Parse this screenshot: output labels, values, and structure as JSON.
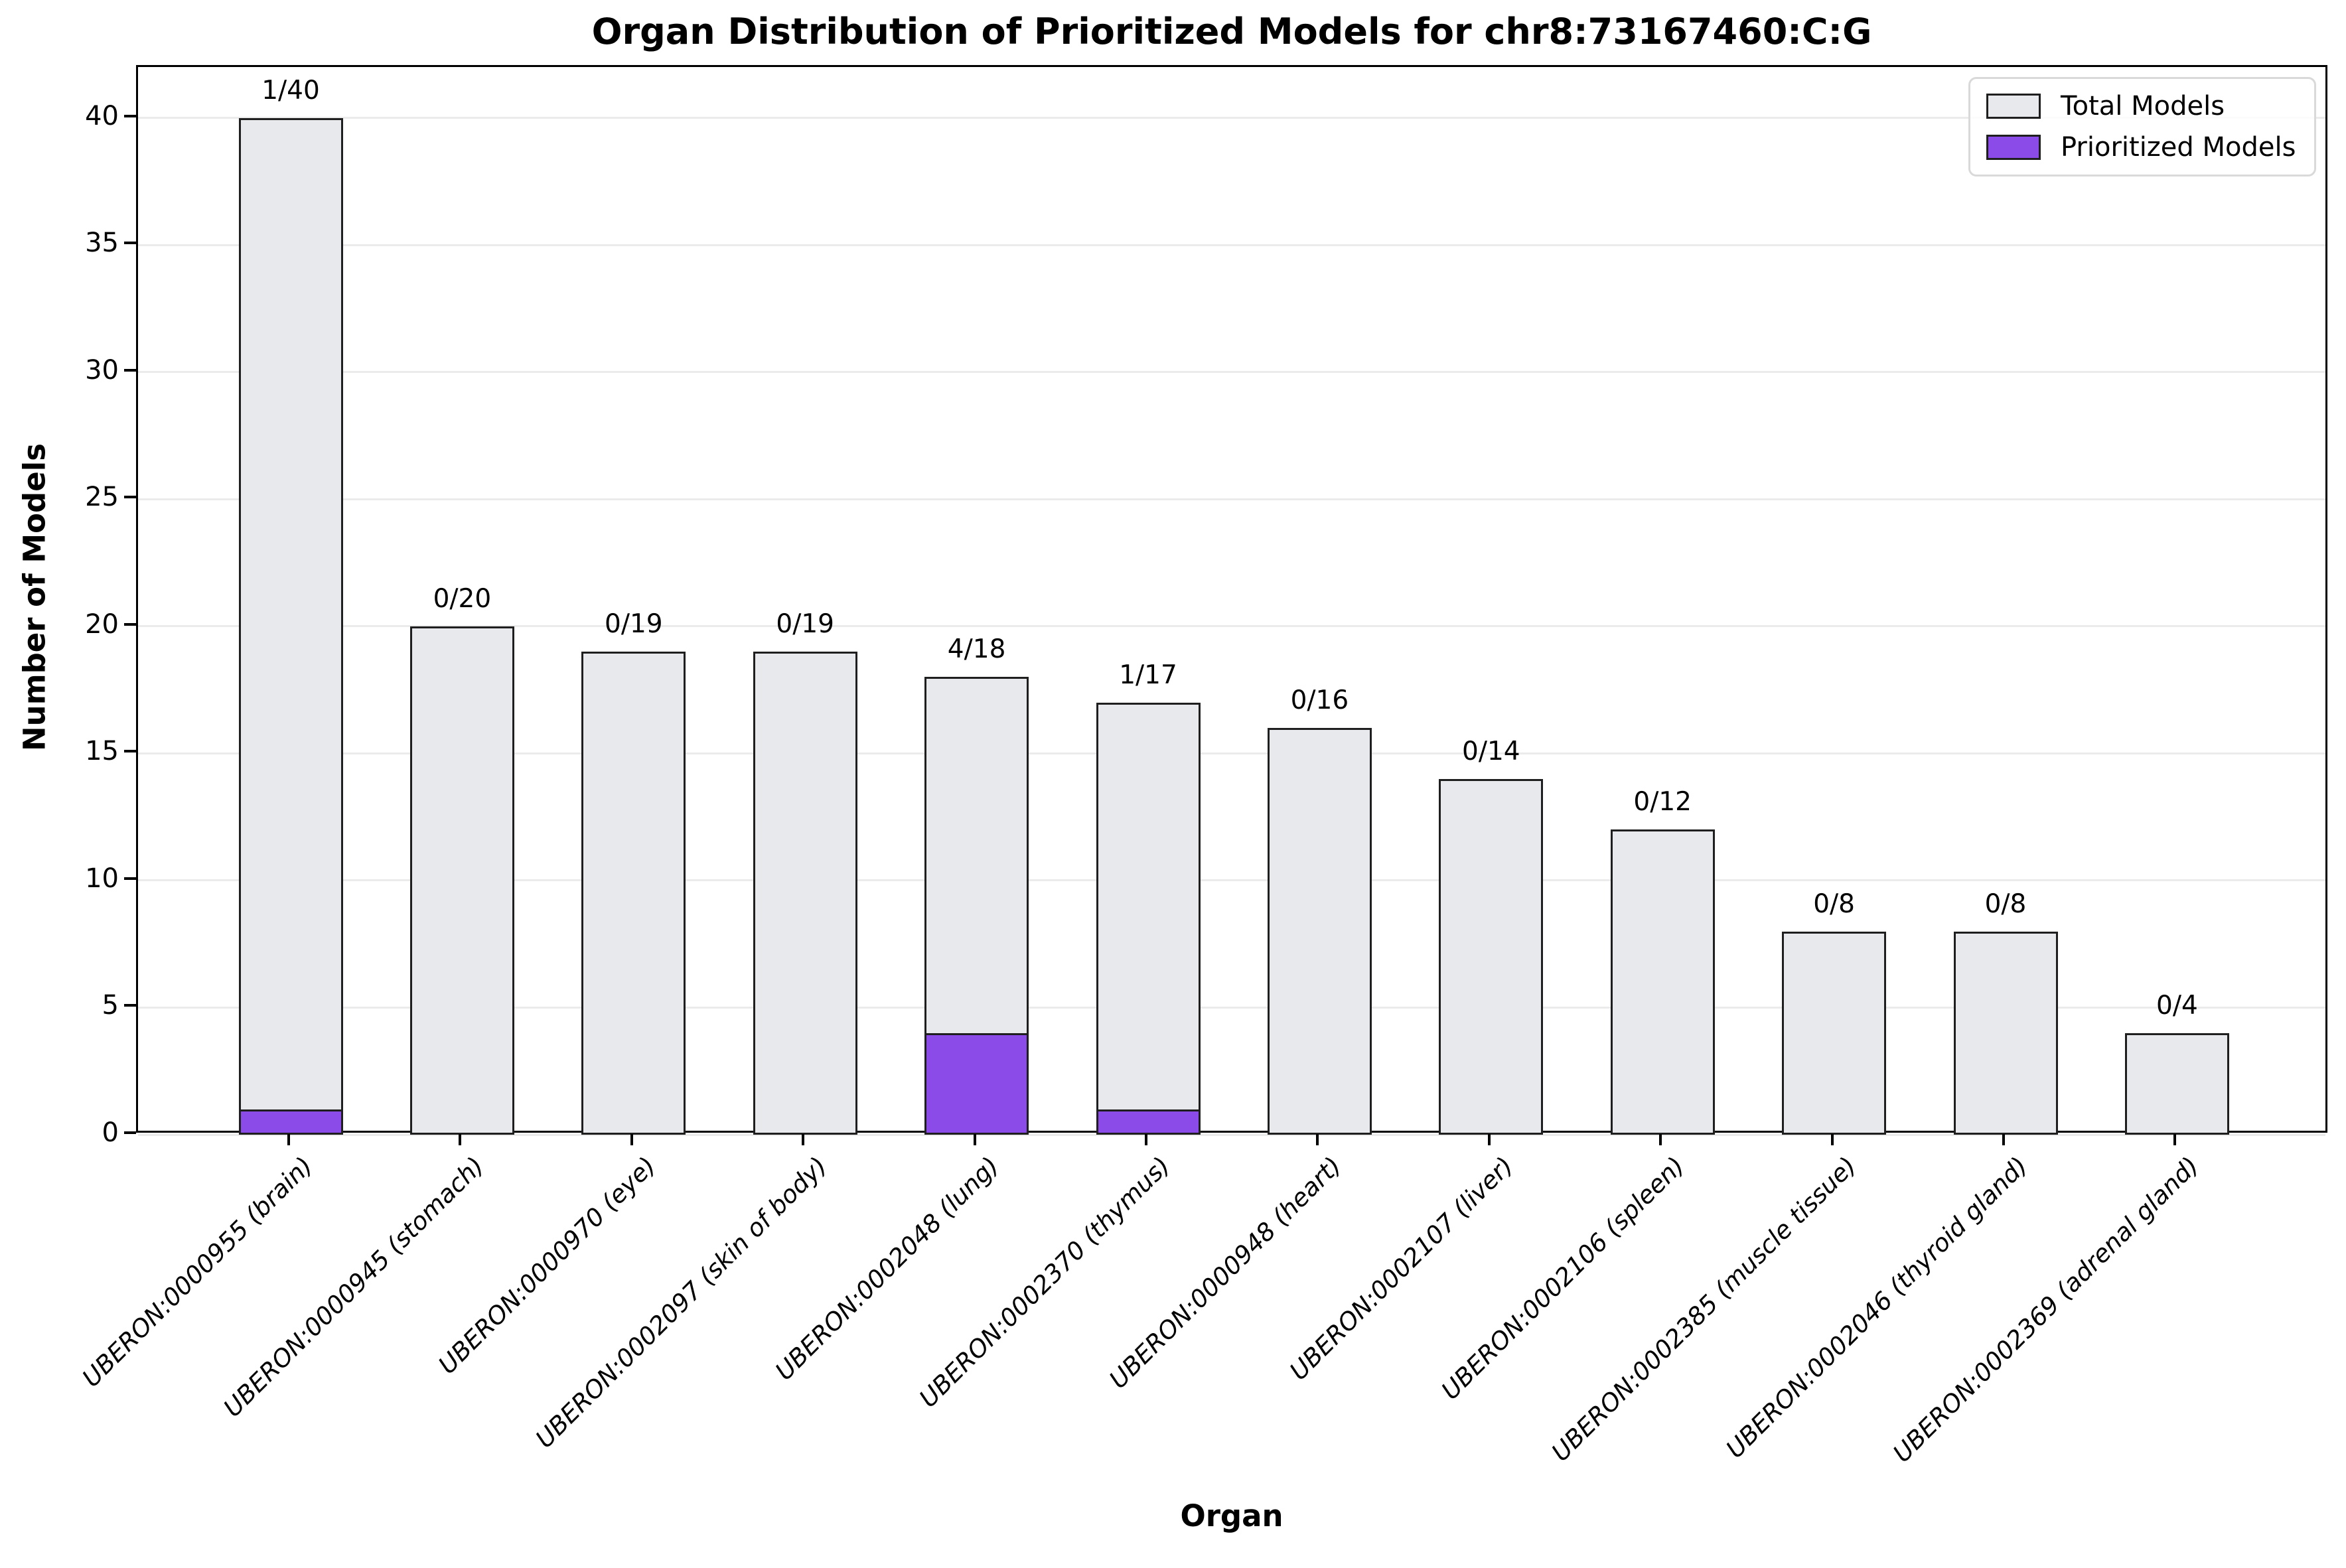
{
  "title": "Organ Distribution of Prioritized Models for chr8:73167460:C:G",
  "axes": {
    "x_label": "Organ",
    "y_label": "Number of Models",
    "y_ticks": [
      0,
      5,
      10,
      15,
      20,
      25,
      30,
      35,
      40
    ]
  },
  "colors": {
    "total_fill": "#e8e9ed",
    "prioritized_fill": "#8a4be8",
    "bar_edge": "#1f1f1f",
    "grid": "#ebebeb",
    "spine": "#000000",
    "background": "#ffffff"
  },
  "chart_data": {
    "type": "bar",
    "title": "Organ Distribution of Prioritized Models for chr8:73167460:C:G",
    "xlabel": "Organ",
    "ylabel": "Number of Models",
    "ylim": [
      0,
      42
    ],
    "grid": "horizontal",
    "legend_position": "upper right",
    "categories": [
      "UBERON:0000955 (brain)",
      "UBERON:0000945 (stomach)",
      "UBERON:0000970 (eye)",
      "UBERON:0002097 (skin of body)",
      "UBERON:0002048 (lung)",
      "UBERON:0002370 (thymus)",
      "UBERON:0000948 (heart)",
      "UBERON:0002107 (liver)",
      "UBERON:0002106 (spleen)",
      "UBERON:0002385 (muscle tissue)",
      "UBERON:0002046 (thyroid gland)",
      "UBERON:0002369 (adrenal gland)"
    ],
    "series": [
      {
        "name": "Total Models",
        "color": "#e8e9ed",
        "values": [
          40,
          20,
          19,
          19,
          18,
          17,
          16,
          14,
          12,
          8,
          8,
          4
        ]
      },
      {
        "name": "Prioritized Models",
        "color": "#8a4be8",
        "values": [
          1,
          0,
          0,
          0,
          4,
          1,
          0,
          0,
          0,
          0,
          0,
          0
        ]
      }
    ],
    "bar_annotations": [
      "1/40",
      "0/20",
      "0/19",
      "0/19",
      "4/18",
      "1/17",
      "0/16",
      "0/14",
      "0/12",
      "0/8",
      "0/8",
      "0/4"
    ]
  }
}
